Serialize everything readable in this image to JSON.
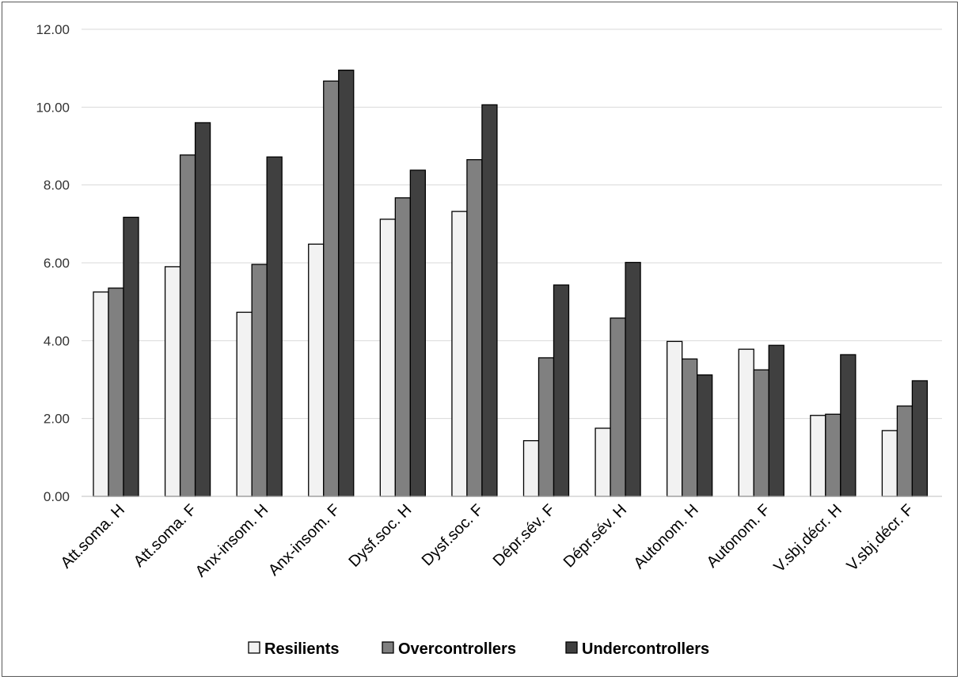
{
  "chart_data": {
    "type": "bar",
    "title": "",
    "xlabel": "",
    "ylabel": "",
    "ylim": [
      0,
      12
    ],
    "ytick_step": 2,
    "ytick_labels": [
      "0.00",
      "2.00",
      "4.00",
      "6.00",
      "8.00",
      "10.00",
      "12.00"
    ],
    "grid": true,
    "legend_position": "bottom",
    "categories": [
      "Att.soma. H",
      "Att.soma. F",
      "Anx-insom. H",
      "Anx-insom. F",
      "Dysf.soc. H",
      "Dysf.soc. F",
      "Dépr.sév. F",
      "Dépr.sév. H",
      "Autonom. H",
      "Autonom. F",
      "V.sbj.décr. H",
      "V.sbj.décr. F"
    ],
    "series": [
      {
        "name": "Resilients",
        "color": "#f2f2f2",
        "values": [
          5.25,
          5.9,
          4.73,
          6.48,
          7.12,
          7.32,
          1.43,
          1.75,
          3.98,
          3.78,
          2.08,
          1.69
        ]
      },
      {
        "name": "Overcontrollers",
        "color": "#808080",
        "values": [
          5.35,
          8.77,
          5.96,
          10.67,
          7.67,
          8.65,
          3.56,
          4.58,
          3.53,
          3.25,
          2.11,
          2.32
        ]
      },
      {
        "name": "Undercontrollers",
        "color": "#404040",
        "values": [
          7.17,
          9.6,
          8.72,
          10.95,
          8.38,
          10.06,
          5.43,
          6.01,
          3.12,
          3.88,
          3.64,
          2.97
        ]
      }
    ]
  }
}
